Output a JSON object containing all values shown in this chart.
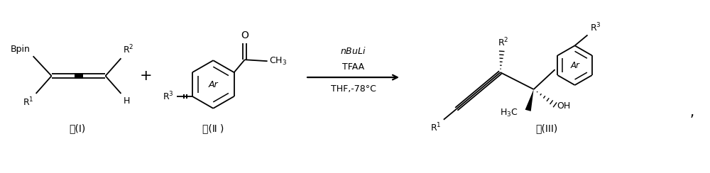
{
  "bg_color": "#ffffff",
  "text_color": "#000000",
  "fig_width": 10.0,
  "fig_height": 2.44,
  "dpi": 100,
  "label_I": "式(I)",
  "label_II": "式(Ⅱ )",
  "label_III": "式(III)",
  "comma": ","
}
